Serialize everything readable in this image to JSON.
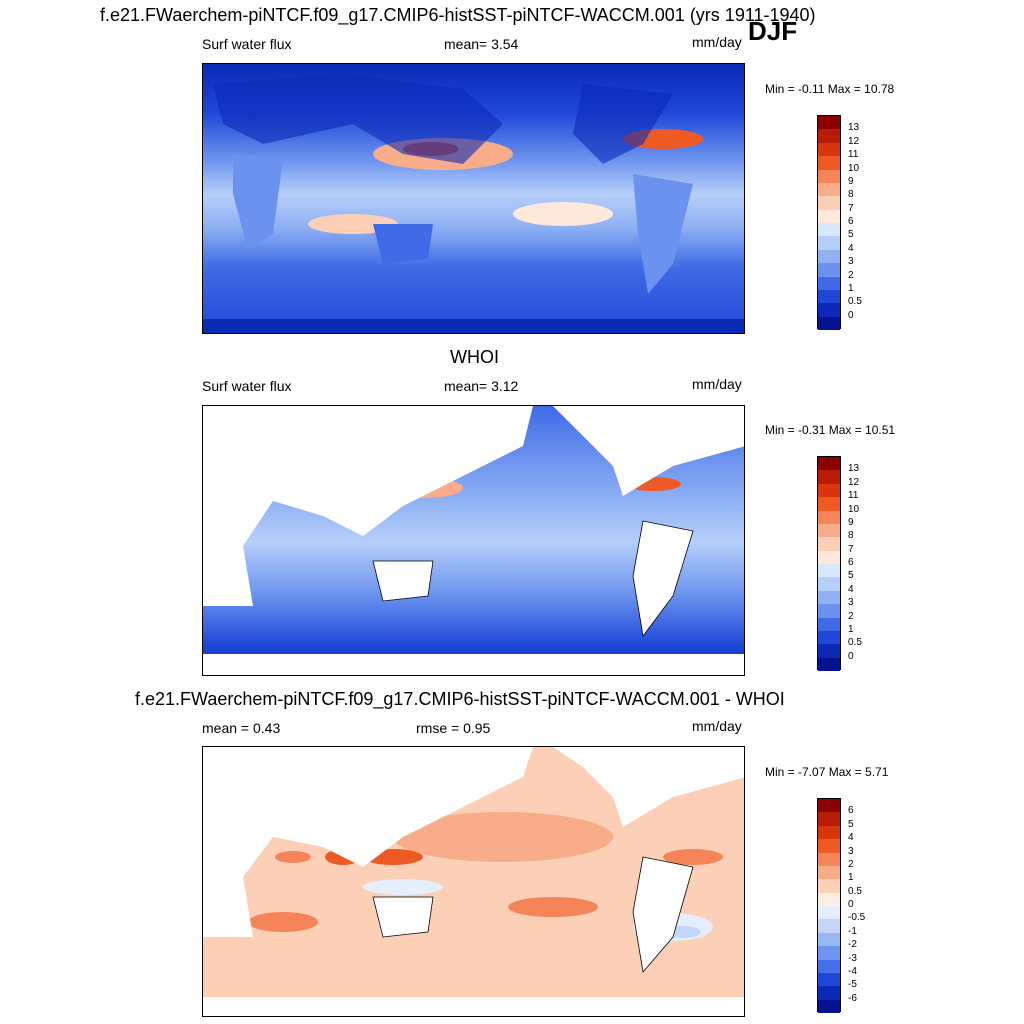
{
  "colors": {
    "land": "#ffffff",
    "ocean_deep": "#1a3fd0",
    "ocean_mid": "#4a78ec",
    "ocean_light": "#cfe0fb",
    "warm": "#f6a482",
    "hot": "#e3411c"
  },
  "panels": [
    {
      "title": "f.e21.FWaerchem-piNTCF.f09_g17.CMIP6-histSST-piNTCF-WACCM.001 (yrs 1911-1940)",
      "season": "DJF",
      "left_label": "Surf water flux",
      "center_label": "mean=   3.54",
      "units": "mm/day",
      "minmax": "Min =  -0.11 Max =  10.78"
    },
    {
      "title": "WHOI",
      "left_label": "Surf water flux",
      "center_label": "mean=   3.12",
      "units": "mm/day",
      "minmax": "Min =  -0.31 Max =  10.51"
    },
    {
      "title": "f.e21.FWaerchem-piNTCF.f09_g17.CMIP6-histSST-piNTCF-WACCM.001 - WHOI",
      "left_label": "mean =   0.43",
      "center_label": "rmse =   0.95",
      "units": "mm/day",
      "minmax": "Min =  -7.07 Max =   5.71"
    }
  ],
  "chart_data": [
    {
      "type": "heatmap",
      "title": "f.e21.FWaerchem-piNTCF.f09_g17.CMIP6-histSST-piNTCF-WACCM.001 (yrs 1911-1940)",
      "variable": "Surf water flux",
      "units": "mm/day",
      "mean": 3.54,
      "min": -0.11,
      "max": 10.78,
      "colorbar_levels": [
        "13",
        "12",
        "11",
        "10",
        "9",
        "8",
        "7",
        "6",
        "5",
        "4",
        "3",
        "2",
        "1",
        "0.5",
        "0"
      ],
      "colorbar_colors": [
        "#8b0000",
        "#b81c07",
        "#d9350d",
        "#ee5a24",
        "#f58459",
        "#f9ac89",
        "#fcd0b6",
        "#fde9dc",
        "#d8e7fc",
        "#b6cff9",
        "#8fb1f4",
        "#6a92ee",
        "#3f6be6",
        "#1f48d8",
        "#0b2ab8",
        "#04128e"
      ]
    },
    {
      "type": "heatmap",
      "title": "WHOI",
      "variable": "Surf water flux",
      "units": "mm/day",
      "mean": 3.12,
      "min": -0.31,
      "max": 10.51,
      "colorbar_levels": [
        "13",
        "12",
        "11",
        "10",
        "9",
        "8",
        "7",
        "6",
        "5",
        "4",
        "3",
        "2",
        "1",
        "0.5",
        "0"
      ],
      "colorbar_colors": [
        "#8b0000",
        "#b81c07",
        "#d9350d",
        "#ee5a24",
        "#f58459",
        "#f9ac89",
        "#fcd0b6",
        "#fde9dc",
        "#d8e7fc",
        "#b6cff9",
        "#8fb1f4",
        "#6a92ee",
        "#3f6be6",
        "#1f48d8",
        "#0b2ab8",
        "#04128e"
      ]
    },
    {
      "type": "heatmap",
      "title": "f.e21.FWaerchem-piNTCF.f09_g17.CMIP6-histSST-piNTCF-WACCM.001 - WHOI",
      "units": "mm/day",
      "mean": 0.43,
      "rmse": 0.95,
      "min": -7.07,
      "max": 5.71,
      "colorbar_levels": [
        "6",
        "5",
        "4",
        "3",
        "2",
        "1",
        "0.5",
        "0",
        "-0.5",
        "-1",
        "-2",
        "-3",
        "-4",
        "-5",
        "-6"
      ],
      "colorbar_colors": [
        "#8b0000",
        "#b81c07",
        "#d9350d",
        "#ee5a24",
        "#f58459",
        "#f9ac89",
        "#fcd0b6",
        "#fdeee4",
        "#e4eefd",
        "#c3d6f9",
        "#96b6f4",
        "#6d94ee",
        "#4570e7",
        "#1f48d8",
        "#0b2ab8",
        "#04128e"
      ]
    }
  ]
}
